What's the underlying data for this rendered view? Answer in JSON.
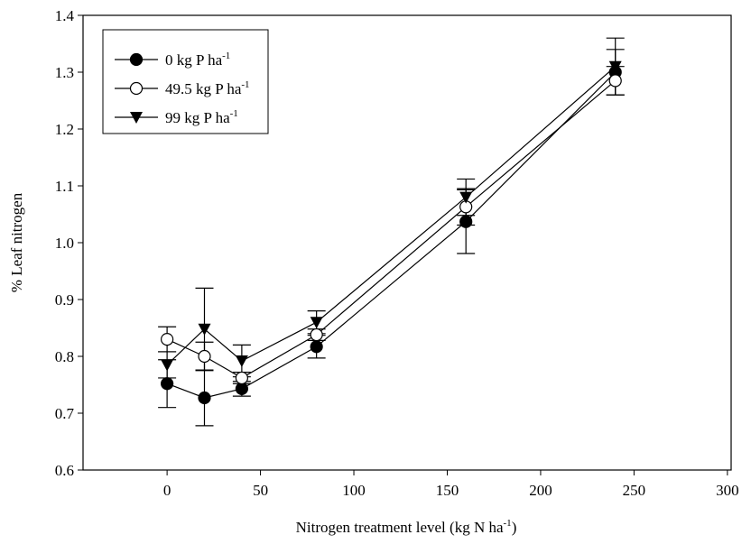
{
  "chart_data": {
    "type": "line",
    "x_label": "Nitrogen treatment level (kg N ha",
    "x_label_sup": "-1",
    "x_label_end": ")",
    "y_label": "% Leaf nitrogen",
    "x": [
      0,
      20,
      40,
      80,
      160,
      240
    ],
    "xlim": [
      -45,
      302
    ],
    "xticks": [
      0,
      50,
      100,
      150,
      200,
      250,
      300
    ],
    "ylim": [
      0.6,
      1.4
    ],
    "yticks": [
      0.6,
      0.7,
      0.8,
      0.9,
      {
        "value": 1.0,
        "label": "1.0"
      },
      1.1,
      1.2,
      1.3,
      1.4
    ],
    "legend": "upper left",
    "series": [
      {
        "name": "0 kg P ha",
        "name_sup": "-1",
        "marker": "filled-circle",
        "color": "#000000",
        "values": [
          0.752,
          0.727,
          0.743,
          0.817,
          1.037,
          1.3
        ],
        "errors": [
          0.042,
          0.049,
          0.013,
          0.02,
          0.056,
          0.04
        ]
      },
      {
        "name": "49.5 kg P ha",
        "name_sup": "-1",
        "marker": "open-circle",
        "color": "#000000",
        "values": [
          0.83,
          0.8,
          0.762,
          0.838,
          1.063,
          1.285
        ],
        "errors": [
          0.022,
          0.025,
          0.01,
          0.01,
          0.032,
          0.025
        ]
      },
      {
        "name": "99 kg P ha",
        "name_sup": "-1",
        "marker": "triangle-down",
        "color": "#000000",
        "values": [
          0.785,
          0.848,
          0.792,
          0.86,
          1.08,
          1.31
        ],
        "errors": [
          0.023,
          0.072,
          0.028,
          0.02,
          0.032,
          0.05
        ]
      }
    ]
  }
}
